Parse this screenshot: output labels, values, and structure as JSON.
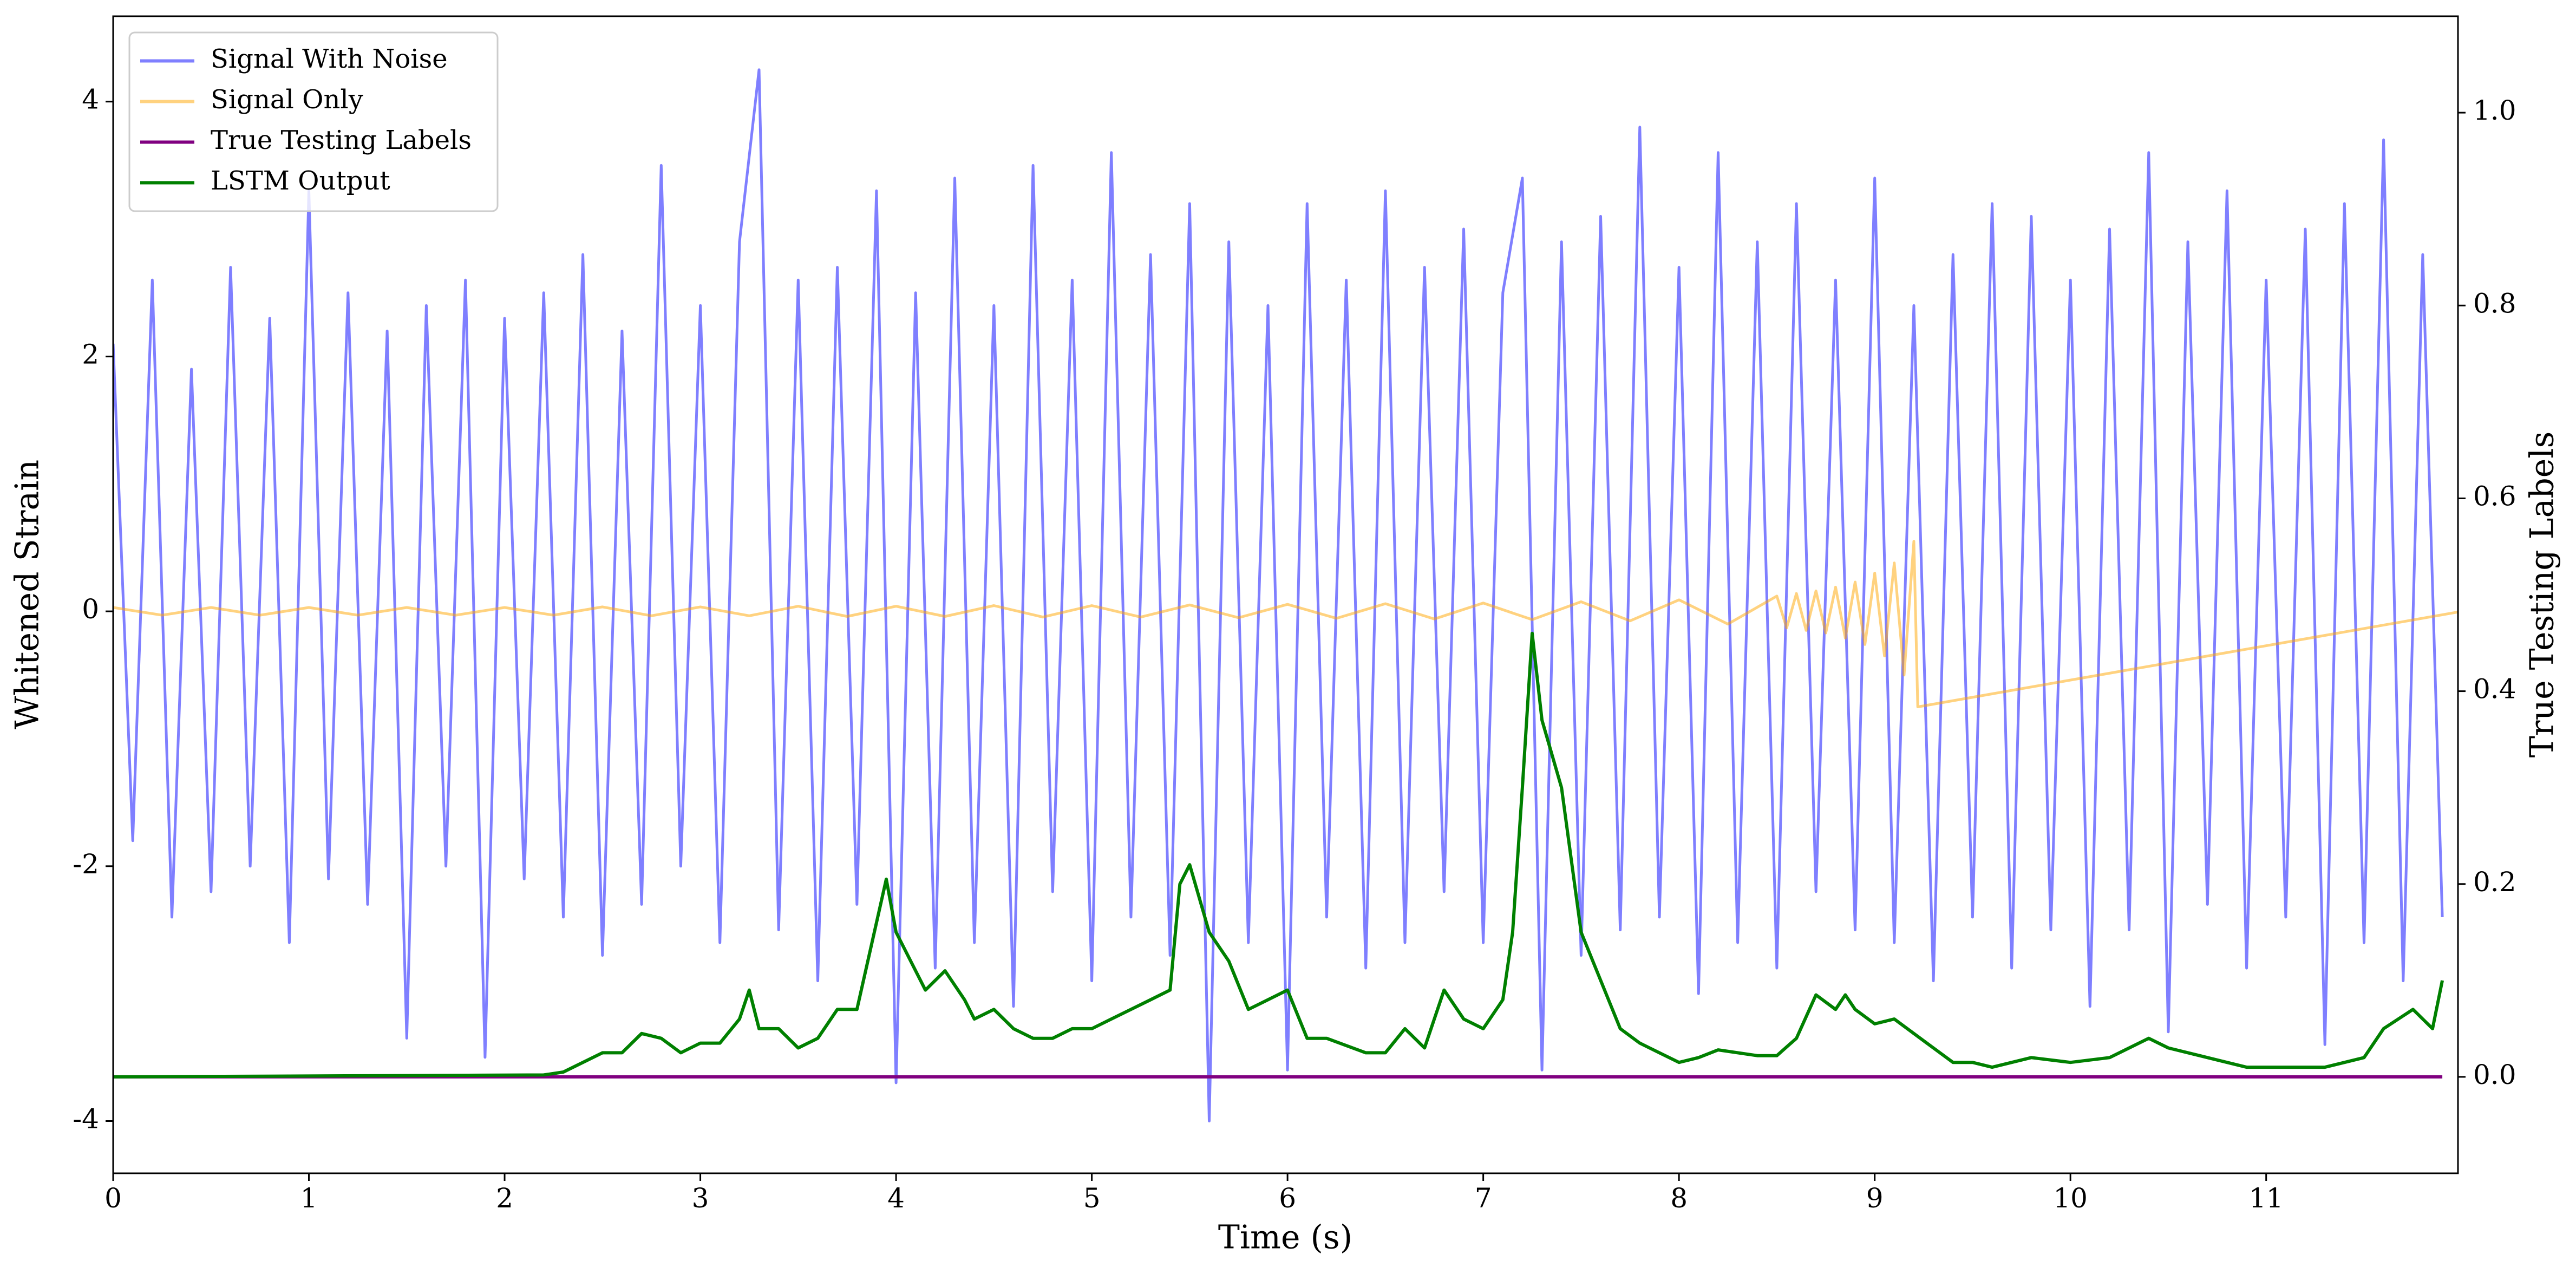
{
  "chart_data": {
    "type": "line",
    "xlabel": "Time (s)",
    "ylabel": "Whitened Strain",
    "y2label": "True Testing Labels",
    "xlim": [
      0,
      11.98
    ],
    "xticks": [
      0,
      1,
      2,
      3,
      4,
      5,
      6,
      7,
      8,
      9,
      10,
      11
    ],
    "ylim": [
      -4.41,
      4.67
    ],
    "yticks": [
      -4,
      -2,
      0,
      2,
      4
    ],
    "y2lim": [
      -0.1,
      1.1
    ],
    "y2ticks": [
      {
        "value": 0,
        "label": "0.0"
      },
      {
        "value": 0.2,
        "label": "0.2"
      },
      {
        "value": 0.4,
        "label": "0.4"
      },
      {
        "value": 0.6,
        "label": "0.6"
      },
      {
        "value": 0.8,
        "label": "0.8"
      },
      {
        "value": 1.0,
        "label": "1.0"
      }
    ],
    "legend": "upper left",
    "grid": false,
    "series": [
      {
        "name": "Signal With Noise",
        "color": "#0000ff",
        "alpha": 0.5,
        "axis": "y",
        "x": [
          0,
          0.1,
          0.2,
          0.3,
          0.4,
          0.5,
          0.6,
          0.7,
          0.8,
          0.9,
          1,
          1.1,
          1.2,
          1.3,
          1.4,
          1.5,
          1.6,
          1.7,
          1.8,
          1.9,
          2,
          2.1,
          2.2,
          2.3,
          2.4,
          2.5,
          2.6,
          2.7,
          2.8,
          2.9,
          3,
          3.1,
          3.2,
          3.3,
          3.4,
          3.5,
          3.6,
          3.7,
          3.8,
          3.9,
          4,
          4.1,
          4.2,
          4.3,
          4.4,
          4.5,
          4.6,
          4.7,
          4.8,
          4.9,
          5,
          5.1,
          5.2,
          5.3,
          5.4,
          5.5,
          5.6,
          5.7,
          5.8,
          5.9,
          6,
          6.1,
          6.2,
          6.3,
          6.4,
          6.5,
          6.6,
          6.7,
          6.8,
          6.9,
          7,
          7.1,
          7.2,
          7.3,
          7.4,
          7.5,
          7.6,
          7.7,
          7.8,
          7.9,
          8,
          8.1,
          8.2,
          8.3,
          8.4,
          8.5,
          8.6,
          8.7,
          8.8,
          8.9,
          9,
          9.1,
          9.2,
          9.3,
          9.4,
          9.5,
          9.6,
          9.7,
          9.8,
          9.9,
          10,
          10.1,
          10.2,
          10.3,
          10.4,
          10.5,
          10.6,
          10.7,
          10.8,
          10.9,
          11,
          11.1,
          11.2,
          11.3,
          11.4,
          11.5,
          11.6,
          11.7,
          11.8,
          11.9
        ],
        "values": [
          2.1,
          -1.8,
          2.6,
          -2.4,
          1.9,
          -2.2,
          2.7,
          -2.0,
          2.3,
          -2.6,
          3.3,
          -2.1,
          2.5,
          -2.3,
          2.2,
          -3.35,
          2.4,
          -2.0,
          2.6,
          -3.5,
          2.3,
          -2.1,
          2.5,
          -2.4,
          2.8,
          -2.7,
          2.2,
          -2.3,
          3.5,
          -2.0,
          2.4,
          -2.6,
          2.9,
          4.25,
          -2.5,
          2.6,
          -2.9,
          2.7,
          -2.3,
          3.3,
          -3.7,
          2.5,
          -2.8,
          3.4,
          -2.6,
          2.4,
          -3.1,
          3.5,
          -2.2,
          2.6,
          -2.9,
          3.6,
          -2.4,
          2.8,
          -2.7,
          3.2,
          -4.0,
          2.9,
          -2.6,
          2.4,
          -3.6,
          3.2,
          -2.4,
          2.6,
          -2.8,
          3.3,
          -2.6,
          2.7,
          -2.2,
          3.0,
          -2.6,
          2.5,
          3.4,
          -3.6,
          2.9,
          -2.7,
          3.1,
          -2.5,
          3.8,
          -2.4,
          2.7,
          -3.0,
          3.6,
          -2.6,
          2.9,
          -2.8,
          3.2,
          -2.2,
          2.6,
          -2.5,
          3.4,
          -2.6,
          2.4,
          -2.9,
          2.8,
          -2.4,
          3.2,
          -2.8,
          3.1,
          -2.5,
          2.6,
          -3.1,
          3.0,
          -2.5,
          3.6,
          -3.3,
          2.9,
          -2.3,
          3.3,
          -2.8,
          2.6,
          -2.4,
          3.0,
          -3.4,
          3.2,
          -2.6,
          3.7,
          -2.9,
          2.8,
          -2.4
        ]
      },
      {
        "name": "Signal Only",
        "color": "#ffa500",
        "alpha": 0.5,
        "axis": "y",
        "x": [
          0,
          0.25,
          0.5,
          0.75,
          1,
          1.25,
          1.5,
          1.75,
          2,
          2.25,
          2.5,
          2.75,
          3,
          3.25,
          3.5,
          3.75,
          4,
          4.25,
          4.5,
          4.75,
          5,
          5.25,
          5.5,
          5.75,
          6,
          6.25,
          6.5,
          6.75,
          7,
          7.25,
          7.5,
          7.75,
          8,
          8.25,
          8.5,
          8.55,
          8.6,
          8.65,
          8.7,
          8.75,
          8.8,
          8.85,
          8.9,
          8.95,
          9,
          9.05,
          9.1,
          9.15,
          9.2,
          9.22,
          12
        ],
        "values": [
          0.03,
          -0.03,
          0.03,
          -0.03,
          0.03,
          -0.03,
          0.03,
          -0.03,
          0.03,
          -0.03,
          0.035,
          -0.035,
          0.035,
          -0.035,
          0.04,
          -0.04,
          0.04,
          -0.04,
          0.045,
          -0.045,
          0.045,
          -0.045,
          0.05,
          -0.05,
          0.055,
          -0.055,
          0.06,
          -0.06,
          0.065,
          -0.065,
          0.075,
          -0.075,
          0.09,
          -0.1,
          0.12,
          -0.13,
          0.14,
          -0.15,
          0.16,
          -0.17,
          0.19,
          -0.21,
          0.23,
          -0.26,
          0.3,
          -0.35,
          0.38,
          -0.5,
          0.55,
          -0.75,
          0
        ]
      },
      {
        "name": "True Testing Labels",
        "color": "#800080",
        "axis": "y2",
        "x": [
          0,
          11.9
        ],
        "values": [
          0,
          0
        ]
      },
      {
        "name": "LSTM Output",
        "color": "#008000",
        "axis": "y2",
        "x": [
          0,
          2.2,
          2.3,
          2.5,
          2.6,
          2.7,
          2.8,
          2.9,
          3.0,
          3.1,
          3.2,
          3.25,
          3.3,
          3.4,
          3.5,
          3.6,
          3.7,
          3.8,
          3.95,
          4.0,
          4.1,
          4.15,
          4.25,
          4.35,
          4.4,
          4.5,
          4.6,
          4.7,
          4.8,
          4.9,
          5.0,
          5.1,
          5.2,
          5.3,
          5.4,
          5.45,
          5.5,
          5.6,
          5.7,
          5.8,
          5.85,
          6.0,
          6.1,
          6.2,
          6.4,
          6.5,
          6.6,
          6.7,
          6.8,
          6.9,
          7.0,
          7.1,
          7.15,
          7.2,
          7.25,
          7.3,
          7.4,
          7.5,
          7.6,
          7.7,
          7.8,
          7.9,
          8.0,
          8.1,
          8.2,
          8.4,
          8.5,
          8.6,
          8.7,
          8.8,
          8.85,
          8.9,
          9.0,
          9.1,
          9.3,
          9.4,
          9.5,
          9.6,
          9.8,
          10.0,
          10.2,
          10.4,
          10.5,
          10.7,
          10.9,
          11.1,
          11.3,
          11.5,
          11.6,
          11.75,
          11.85,
          11.9
        ],
        "values": [
          0,
          0.002,
          0.005,
          0.025,
          0.025,
          0.045,
          0.04,
          0.025,
          0.035,
          0.035,
          0.06,
          0.09,
          0.05,
          0.05,
          0.03,
          0.04,
          0.07,
          0.07,
          0.205,
          0.15,
          0.11,
          0.09,
          0.11,
          0.08,
          0.06,
          0.07,
          0.05,
          0.04,
          0.04,
          0.05,
          0.05,
          0.06,
          0.07,
          0.08,
          0.09,
          0.2,
          0.22,
          0.15,
          0.12,
          0.07,
          0.075,
          0.09,
          0.04,
          0.04,
          0.025,
          0.025,
          0.05,
          0.03,
          0.09,
          0.06,
          0.05,
          0.08,
          0.15,
          0.3,
          0.46,
          0.37,
          0.3,
          0.15,
          0.1,
          0.05,
          0.035,
          0.025,
          0.015,
          0.02,
          0.028,
          0.022,
          0.022,
          0.04,
          0.085,
          0.07,
          0.085,
          0.07,
          0.055,
          0.06,
          0.03,
          0.015,
          0.015,
          0.01,
          0.02,
          0.015,
          0.02,
          0.04,
          0.03,
          0.02,
          0.01,
          0.01,
          0.01,
          0.02,
          0.05,
          0.07,
          0.05,
          0.1
        ]
      }
    ]
  }
}
